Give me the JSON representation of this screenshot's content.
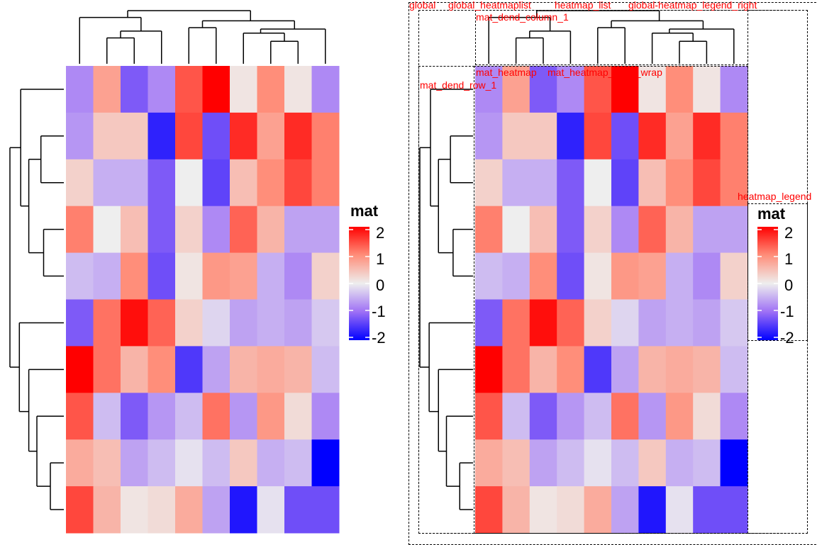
{
  "chart_data": [
    {
      "type": "heatmap",
      "name": "mat",
      "rows": 10,
      "columns": 10,
      "values": [
        [
          -0.8,
          0.8,
          -1.2,
          -0.8,
          1.4,
          2.0,
          0.1,
          1.0,
          0.1,
          -0.8
        ],
        [
          -0.7,
          0.4,
          0.4,
          -1.7,
          1.5,
          -1.3,
          1.7,
          0.8,
          1.7,
          1.1
        ],
        [
          0.3,
          -0.5,
          -0.5,
          -1.2,
          0.0,
          -1.4,
          0.5,
          1.0,
          1.5,
          1.1
        ],
        [
          1.1,
          0.0,
          0.5,
          -1.2,
          0.3,
          -0.8,
          1.3,
          0.6,
          -0.6,
          -0.6
        ],
        [
          -0.4,
          -0.5,
          1.0,
          -1.3,
          0.1,
          0.9,
          0.8,
          -0.5,
          -0.8,
          0.3
        ],
        [
          -1.2,
          1.2,
          1.9,
          1.3,
          0.3,
          -0.2,
          -0.6,
          -0.5,
          -0.6,
          -0.3
        ],
        [
          2.0,
          1.2,
          0.6,
          1.0,
          -1.5,
          -0.6,
          0.6,
          0.7,
          0.6,
          -0.4
        ],
        [
          1.4,
          -0.4,
          -1.2,
          -0.7,
          -0.4,
          1.2,
          -0.7,
          0.9,
          0.2,
          -0.8
        ],
        [
          0.7,
          0.5,
          -0.6,
          -0.4,
          -0.1,
          -0.4,
          0.4,
          -0.5,
          -0.4,
          -2.0
        ],
        [
          1.5,
          0.6,
          0.1,
          0.2,
          0.7,
          -0.6,
          -1.8,
          -0.1,
          -1.3,
          -1.3
        ]
      ],
      "color_scale": {
        "min": -2,
        "mid": 0,
        "max": 2,
        "low": "#0000FF",
        "midcolor": "#EEEEEE",
        "high": "#FF0000"
      },
      "legend": {
        "title": "mat",
        "ticks": [
          "2",
          "1",
          "0",
          "-1",
          "-2"
        ],
        "placement": "right"
      },
      "row_dendrogram": true,
      "column_dendrogram": true
    }
  ],
  "viewport_labels": {
    "global": "global",
    "heatmaplist": "global_heatmaplist",
    "overlap1": "heatmap_list",
    "dend_column": "mat_dend_column_1",
    "dend_row": "mat_dend_row_1",
    "body_wrap": "mat_heatmap_body_wrap",
    "overlap2": "mat_heatmap",
    "global_legend": "global-heatmap_legend_right",
    "heatmap_legend": "heatmap_legend"
  }
}
